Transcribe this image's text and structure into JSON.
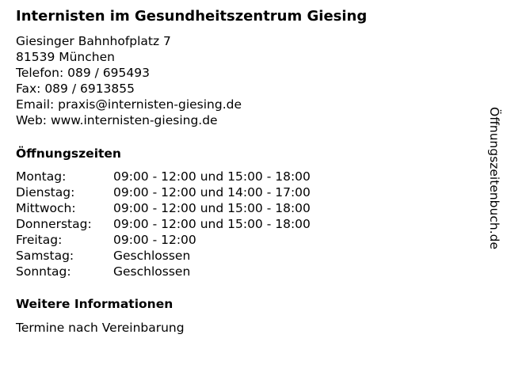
{
  "title": "Internisten im Gesundheitszentrum Giesing",
  "address": {
    "street": "Giesinger Bahnhofplatz 7",
    "city": "81539 München",
    "phone": "Telefon: 089 / 695493",
    "fax": "Fax: 089 / 6913855",
    "email": "Email: praxis@internisten-giesing.de",
    "web": "Web: www.internisten-giesing.de"
  },
  "hours_heading": "Öffnungszeiten",
  "hours": [
    {
      "day": "Montag:",
      "time": "09:00 - 12:00 und 15:00 - 18:00"
    },
    {
      "day": "Dienstag:",
      "time": "09:00 - 12:00 und 14:00 - 17:00"
    },
    {
      "day": "Mittwoch:",
      "time": "09:00 - 12:00 und 15:00 - 18:00"
    },
    {
      "day": "Donnerstag:",
      "time": "09:00 - 12:00 und 15:00 - 18:00"
    },
    {
      "day": "Freitag:",
      "time": "09:00 - 12:00"
    },
    {
      "day": "Samstag:",
      "time": "Geschlossen"
    },
    {
      "day": "Sonntag:",
      "time": "Geschlossen"
    }
  ],
  "info_heading": "Weitere Informationen",
  "info_text": "Termine nach Vereinbarung",
  "side_label": "Öffnungszeitenbuch.de"
}
